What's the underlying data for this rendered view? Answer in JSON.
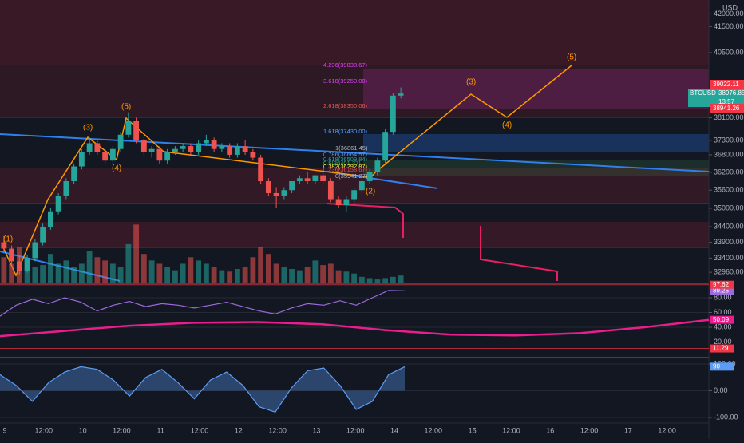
{
  "chart_data": [
    {
      "type": "candlestick",
      "symbol": "BTCUSD",
      "currency": "USD",
      "log": true,
      "up_color": "#26a69a",
      "down_color": "#ef5350",
      "ylim": [
        32620,
        42550
      ],
      "yticks": [
        {
          "value": 42000,
          "label": "42000.00"
        },
        {
          "value": 41500,
          "label": "41500.00"
        },
        {
          "value": 40500,
          "label": "40500.00"
        },
        {
          "value": 38100,
          "label": "38100.00"
        },
        {
          "value": 37300,
          "label": "37300.00"
        },
        {
          "value": 36800,
          "label": "36800.00"
        },
        {
          "value": 36200,
          "label": "36200.00"
        },
        {
          "value": 35600,
          "label": "35600.00"
        },
        {
          "value": 35000,
          "label": "35000.00"
        },
        {
          "value": 34400,
          "label": "34400.00"
        },
        {
          "value": 33900,
          "label": "33900.00"
        },
        {
          "value": 33400,
          "label": "33400.00"
        },
        {
          "value": 32960,
          "label": "32960.00"
        }
      ],
      "x_labels": [
        "9",
        "12:00",
        "10",
        "12:00",
        "11",
        "12:00",
        "12",
        "12:00",
        "13",
        "12:00",
        "14",
        "12:00",
        "15",
        "12:00",
        "16",
        "12:00",
        "17",
        "12:00"
      ],
      "open": [
        33900,
        33700,
        33300,
        33000,
        33400,
        33900,
        34400,
        34900,
        35400,
        35900,
        36400,
        36900,
        37200,
        36900,
        36600,
        37000,
        37500,
        38000,
        37300,
        36900,
        37000,
        36600,
        36900,
        37000,
        37100,
        36900,
        37200,
        37300,
        37000,
        37100,
        36800,
        37100,
        36900,
        36700,
        35900,
        35500,
        35400,
        35600,
        35900,
        36000,
        35900,
        36100,
        35900,
        35300,
        35100,
        35300,
        35600,
        35900,
        36200,
        36600,
        37600,
        38900
      ],
      "high": [
        34100,
        33800,
        33500,
        33500,
        34000,
        34500,
        35000,
        35500,
        36000,
        36500,
        37000,
        37400,
        37300,
        37000,
        37100,
        37600,
        38300,
        38100,
        37400,
        37100,
        37100,
        37000,
        37100,
        37200,
        37200,
        37300,
        37500,
        37400,
        37200,
        37200,
        37200,
        37300,
        37000,
        36800,
        36000,
        35700,
        35700,
        35900,
        36100,
        36200,
        36100,
        36200,
        36000,
        35400,
        35400,
        35700,
        36000,
        36300,
        36700,
        37700,
        39000,
        39200
      ],
      "low": [
        33600,
        33200,
        32900,
        32950,
        33300,
        33800,
        34300,
        34800,
        35300,
        35800,
        36300,
        36800,
        36800,
        36500,
        36500,
        36900,
        37400,
        37200,
        36800,
        36700,
        36500,
        36500,
        36800,
        36900,
        36800,
        36800,
        37100,
        36900,
        36900,
        36700,
        36700,
        36800,
        36600,
        35800,
        35400,
        35000,
        35300,
        35500,
        35800,
        35800,
        35800,
        35800,
        35200,
        35000,
        34900,
        35100,
        35500,
        35800,
        36100,
        36500,
        37500,
        38800
      ],
      "close": [
        33700,
        33300,
        33000,
        33400,
        33900,
        34400,
        34900,
        35400,
        35900,
        36400,
        36900,
        37200,
        36900,
        36600,
        37000,
        37500,
        38000,
        37300,
        36900,
        37000,
        36600,
        36900,
        37000,
        37100,
        36900,
        37200,
        37300,
        37000,
        37100,
        36800,
        37100,
        36900,
        36700,
        35900,
        35500,
        35400,
        35600,
        35900,
        36000,
        35900,
        36100,
        35900,
        35300,
        35100,
        35300,
        35600,
        35900,
        36200,
        36600,
        37600,
        38900,
        38977
      ],
      "volume": [
        40,
        30,
        55,
        35,
        25,
        28,
        45,
        30,
        35,
        25,
        30,
        50,
        40,
        35,
        30,
        25,
        60,
        90,
        45,
        35,
        30,
        25,
        20,
        30,
        40,
        35,
        30,
        25,
        20,
        18,
        22,
        25,
        40,
        55,
        45,
        30,
        25,
        22,
        20,
        25,
        35,
        28,
        30,
        20,
        18,
        15,
        10,
        8,
        6,
        8,
        10,
        12
      ],
      "volume_lim": [
        0,
        110
      ],
      "price_labels": [
        "39022.11",
        "38976.85",
        "13:57",
        "38941.26"
      ],
      "fib_labels": [
        "4.236(39838.67)",
        "3.618(39250.08)",
        "2.618(38350.06)",
        "1.618(37430.00)",
        "1(36861.45)",
        "0.786(36664.57)",
        "0.618(36509.84)",
        "0.5(36401.37)",
        "0.382(36292.87)",
        "0.236(36158.67)",
        "0(35941.27)"
      ],
      "wave_labels": [
        "(1)",
        "(3)",
        "(4)",
        "(5)",
        "(2)",
        "(3)",
        "(4)",
        "(5)"
      ]
    },
    {
      "type": "line",
      "ylim": [
        0,
        100
      ],
      "yticks": [
        {
          "value": 80,
          "label": "80.00"
        },
        {
          "value": 60,
          "label": "60.00"
        },
        {
          "value": 40,
          "label": "40.00"
        },
        {
          "value": 20,
          "label": "20.00"
        }
      ],
      "series": [
        {
          "color": "#9c6ade",
          "values": [
            55,
            70,
            78,
            72,
            80,
            74,
            62,
            70,
            75,
            68,
            72,
            70,
            66,
            70,
            74,
            68,
            62,
            58,
            66,
            72,
            70,
            76,
            70,
            80,
            90,
            89.25
          ]
        },
        {
          "color": "#e91e8c",
          "values": [
            28,
            35,
            42,
            46,
            47,
            44,
            36,
            30,
            29,
            32,
            40,
            50.09
          ]
        }
      ],
      "levels": [
        97.62,
        11.29
      ]
    },
    {
      "type": "line",
      "ylim": [
        -100,
        100
      ],
      "yticks": [
        {
          "value": 100,
          "label": "100.00"
        },
        {
          "value": 0,
          "label": "0.00"
        },
        {
          "value": -100,
          "label": "-100.00"
        }
      ],
      "series": [
        {
          "color": "#5b9cf6",
          "values": [
            60,
            20,
            -40,
            30,
            70,
            90,
            80,
            40,
            -20,
            50,
            80,
            30,
            -30,
            40,
            70,
            20,
            -60,
            -80,
            10,
            75,
            85,
            20,
            -70,
            -40,
            60,
            90
          ]
        }
      ]
    }
  ]
}
